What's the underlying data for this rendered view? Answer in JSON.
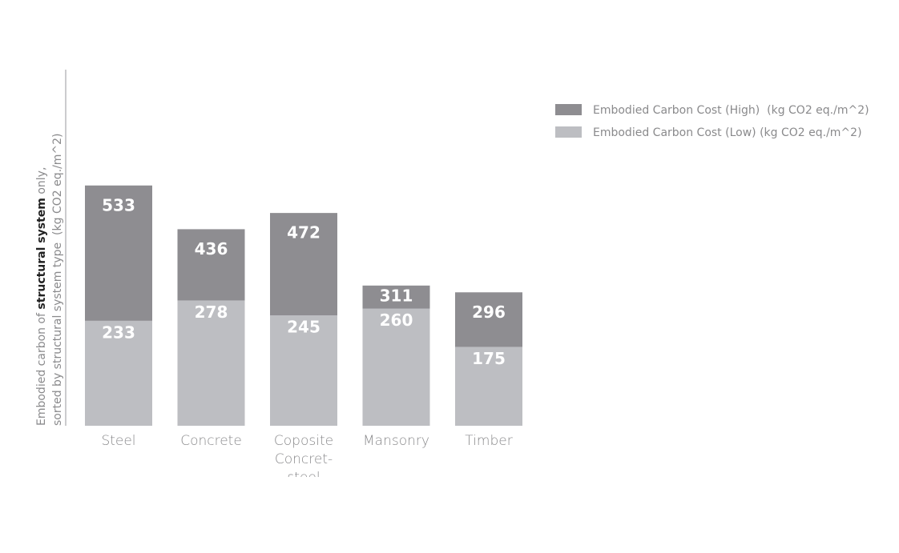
{
  "chart_data": {
    "type": "bar",
    "ylabel": {
      "line1": [
        "Embodied carbon of ",
        "structural system",
        " only,"
      ],
      "line2": "sorted by structural system type  (kg CO2 eq./m^2)"
    },
    "categories": [
      "Steel",
      "Concrete",
      "Coposite Concret-steel",
      "Mansonry",
      "Timber"
    ],
    "series": [
      {
        "name": "Embodied Carbon Cost (High)  (kg CO2 eq./m^2)",
        "color": "#8e8d91",
        "values": [
          533,
          436,
          472,
          311,
          296
        ]
      },
      {
        "name": "Embodied Carbon Cost (Low) (kg CO2 eq./m^2)",
        "color": "#bdbec2",
        "values": [
          233,
          278,
          245,
          260,
          175
        ]
      }
    ],
    "ylim": [
      0,
      790
    ],
    "legend": "upper right"
  }
}
